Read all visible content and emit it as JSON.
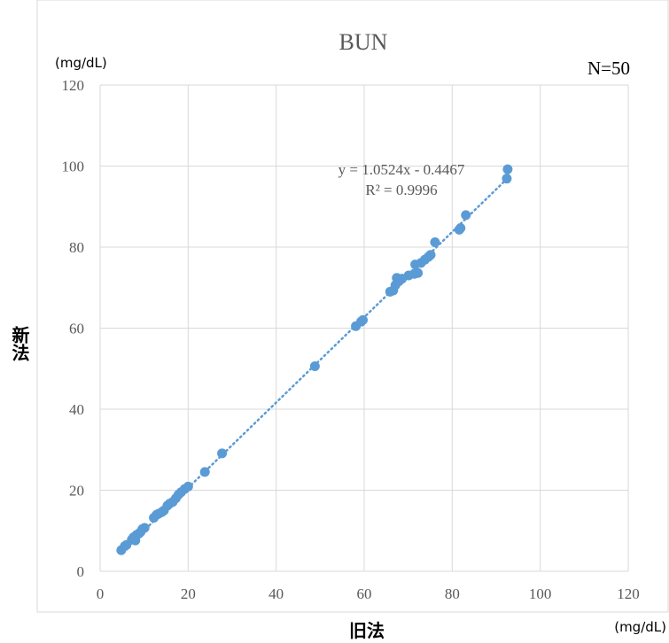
{
  "chart_data": {
    "type": "scatter",
    "title": "BUN",
    "xlabel": "旧法",
    "ylabel": "新法",
    "x_unit": "(mg/dL)",
    "y_unit": "(mg/dL)",
    "n_label": "N=50",
    "xlim": [
      0,
      120
    ],
    "ylim": [
      0,
      120
    ],
    "xticks": [
      "0",
      "20",
      "40",
      "60",
      "80",
      "100",
      "120"
    ],
    "yticks": [
      "0",
      "20",
      "40",
      "60",
      "80",
      "100",
      "120"
    ],
    "grid": true,
    "marker_color": "#5B9BD5",
    "trendline": {
      "slope": 1.0524,
      "intercept": -0.4467,
      "x_range": [
        4.8,
        92.6
      ],
      "equation": "y = 1.0524x - 0.4467",
      "r2_label": "R² = 0.9996"
    },
    "points": [
      [
        4.8,
        5.2
      ],
      [
        5.6,
        6.2
      ],
      [
        6.0,
        6.5
      ],
      [
        7.2,
        7.8
      ],
      [
        7.6,
        8.4
      ],
      [
        8.0,
        7.6
      ],
      [
        8.3,
        9.0
      ],
      [
        8.8,
        9.3
      ],
      [
        9.2,
        9.7
      ],
      [
        9.6,
        10.4
      ],
      [
        10.1,
        10.7
      ],
      [
        12.2,
        13.2
      ],
      [
        12.8,
        13.9
      ],
      [
        13.3,
        14.2
      ],
      [
        14.0,
        14.6
      ],
      [
        14.5,
        15.0
      ],
      [
        15.3,
        16.2
      ],
      [
        15.8,
        16.7
      ],
      [
        16.5,
        17.1
      ],
      [
        17.2,
        18.0
      ],
      [
        17.8,
        18.9
      ],
      [
        18.4,
        19.5
      ],
      [
        19.2,
        20.3
      ],
      [
        20.0,
        20.9
      ],
      [
        23.8,
        24.5
      ],
      [
        27.7,
        29.1
      ],
      [
        48.8,
        50.6
      ],
      [
        58.1,
        60.5
      ],
      [
        59.3,
        61.6
      ],
      [
        59.7,
        62.0
      ],
      [
        65.9,
        69.0
      ],
      [
        66.6,
        69.3
      ],
      [
        67.1,
        70.6
      ],
      [
        67.4,
        72.4
      ],
      [
        67.9,
        71.6
      ],
      [
        68.6,
        72.2
      ],
      [
        70.1,
        73.0
      ],
      [
        71.4,
        73.4
      ],
      [
        71.6,
        75.7
      ],
      [
        72.2,
        73.6
      ],
      [
        72.9,
        76.1
      ],
      [
        73.8,
        76.9
      ],
      [
        74.6,
        77.6
      ],
      [
        75.1,
        78.1
      ],
      [
        76.1,
        81.2
      ],
      [
        81.6,
        84.3
      ],
      [
        81.9,
        84.7
      ],
      [
        83.1,
        87.9
      ],
      [
        92.4,
        96.9
      ],
      [
        92.6,
        99.2
      ]
    ]
  }
}
